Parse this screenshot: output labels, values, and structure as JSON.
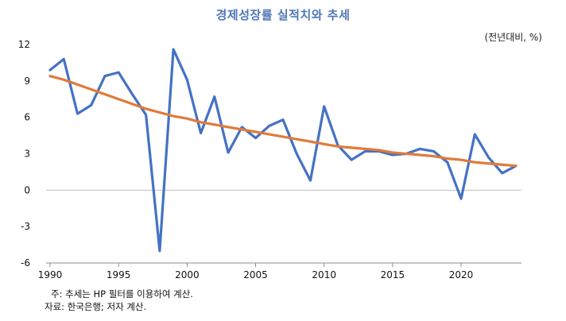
{
  "chart_data": {
    "type": "line",
    "title": "경제성장률 실적치와 추세",
    "unit_label": "(전년대비, %)",
    "x": [
      1990,
      1991,
      1992,
      1993,
      1994,
      1995,
      1996,
      1997,
      1998,
      1999,
      2000,
      2001,
      2002,
      2003,
      2004,
      2005,
      2006,
      2007,
      2008,
      2009,
      2010,
      2011,
      2012,
      2013,
      2014,
      2015,
      2016,
      2017,
      2018,
      2019,
      2020,
      2021,
      2022,
      2023,
      2024
    ],
    "xticks": [
      "1990",
      "1995",
      "2000",
      "2005",
      "2010",
      "2015",
      "2020"
    ],
    "xtick_values": [
      1990,
      1995,
      2000,
      2005,
      2010,
      2015,
      2020
    ],
    "yticks": [
      "12",
      "9",
      "6",
      "3",
      "0",
      "-3",
      "-6"
    ],
    "ytick_values": [
      12,
      9,
      6,
      3,
      0,
      -3,
      -6
    ],
    "ylim": [
      -6,
      12
    ],
    "xlim": [
      1990,
      2024
    ],
    "grid": false,
    "series": [
      {
        "color": "#4472c4",
        "values": [
          9.9,
          10.8,
          6.3,
          7.0,
          9.4,
          9.7,
          7.9,
          6.2,
          -5.0,
          11.6,
          9.1,
          4.7,
          7.7,
          3.1,
          5.2,
          4.3,
          5.3,
          5.8,
          3.0,
          0.8,
          6.9,
          3.7,
          2.5,
          3.2,
          3.2,
          2.9,
          3.0,
          3.4,
          3.2,
          2.3,
          -0.7,
          4.6,
          2.7,
          1.4,
          2.0
        ]
      },
      {
        "color": "#e07b39",
        "values": [
          9.4,
          9.1,
          8.7,
          8.3,
          7.9,
          7.5,
          7.1,
          6.7,
          6.4,
          6.1,
          5.9,
          5.6,
          5.4,
          5.2,
          5.0,
          4.8,
          4.6,
          4.4,
          4.2,
          4.0,
          3.8,
          3.6,
          3.5,
          3.4,
          3.3,
          3.1,
          3.0,
          2.9,
          2.8,
          2.6,
          2.5,
          2.3,
          2.2,
          2.1,
          2.0
        ]
      }
    ]
  },
  "notes": {
    "note_1": "주: 추세는 HP 필터를 이용하여 계산.",
    "note_2": "자료: 한국은행; 저자 계산."
  }
}
